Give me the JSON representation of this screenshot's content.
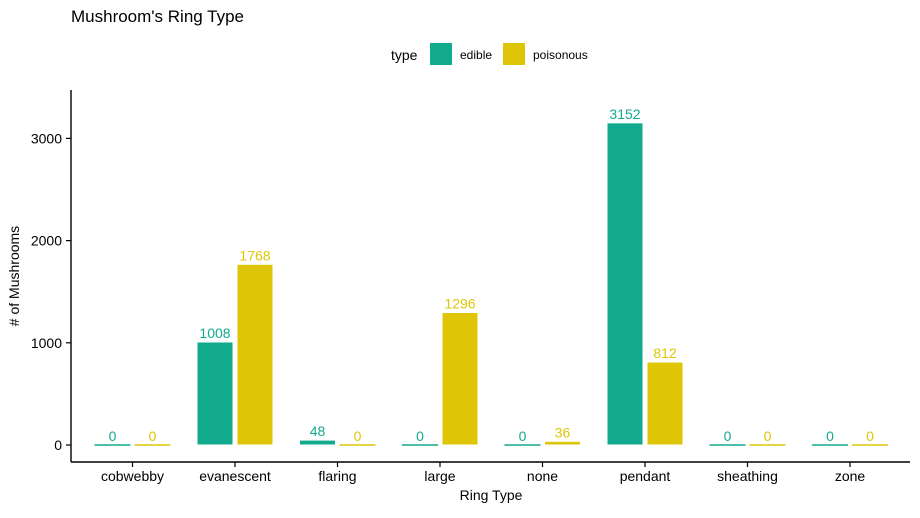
{
  "chart_data": {
    "type": "bar",
    "title": "Mushroom's Ring Type",
    "xlabel": "Ring Type",
    "ylabel": "# of Mushrooms",
    "categories": [
      "cobwebby",
      "evanescent",
      "flaring",
      "large",
      "none",
      "pendant",
      "sheathing",
      "zone"
    ],
    "series": [
      {
        "name": "edible",
        "color": "#12AA8C",
        "values": [
          0,
          1008,
          48,
          0,
          0,
          3152,
          0,
          0
        ]
      },
      {
        "name": "poisonous",
        "color": "#DEC606",
        "values": [
          0,
          1768,
          0,
          1296,
          36,
          812,
          0,
          0
        ]
      }
    ],
    "ylim": [
      0,
      3300
    ],
    "yticks": [
      0,
      1000,
      2000,
      3000
    ],
    "legend": {
      "title": "type",
      "position": "top"
    },
    "grid": false,
    "data_labels": true
  }
}
